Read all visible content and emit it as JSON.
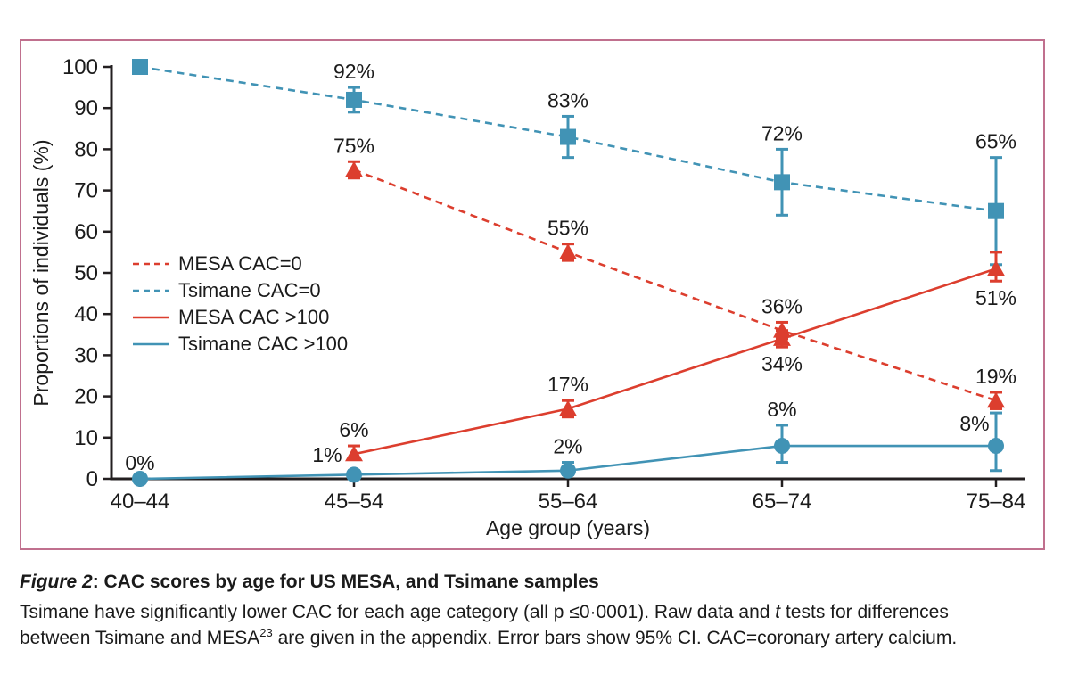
{
  "figure": {
    "border_color": "#c0708e",
    "background": "#ffffff"
  },
  "caption": {
    "figure_label": "Figure 2",
    "title": ": CAC scores by age for US MESA, and Tsimane samples",
    "body_line1_part1": "Tsimane have significantly lower CAC for each age category (all p ≤0·0001). Raw data and ",
    "body_line1_italic": "t",
    "body_line1_part2": " tests for differences",
    "body_line2_part1": "between Tsimane and MESA",
    "body_line2_sup": "23",
    "body_line2_part2": " are given in the appendix. Error bars show 95% CI. CAC=coronary artery calcium."
  },
  "chart_data": {
    "type": "line",
    "title": "CAC scores by age for US MESA, and Tsimane samples",
    "categories": [
      "40–44",
      "45–54",
      "55–64",
      "65–74",
      "75–84"
    ],
    "xlabel": "Age group (years)",
    "ylabel": "Proportions of individuals (%)",
    "ylim": [
      0,
      100
    ],
    "y_ticks": [
      0,
      10,
      20,
      30,
      40,
      50,
      60,
      70,
      80,
      90,
      100
    ],
    "grid": false,
    "legend_position": "middle-left",
    "error_bars": "95% CI (estimated from figure)",
    "colors": {
      "mesa_red": "#dc3e2e",
      "tsimane_blue": "#4193b5",
      "axis": "#231f20",
      "text": "#1b1b1b"
    },
    "series": [
      {
        "name": "MESA CAC=0",
        "color": "#dc3e2e",
        "line": "dashed",
        "marker": "triangle",
        "values": [
          null,
          75,
          55,
          36,
          19
        ],
        "ci": [
          null,
          [
            73,
            77
          ],
          [
            53,
            57
          ],
          [
            34,
            38
          ],
          [
            17,
            21
          ]
        ],
        "point_labels": [
          null,
          "75%",
          "55%",
          "36%",
          "19%"
        ],
        "label_pos": [
          null,
          "above",
          "above",
          "above",
          "above"
        ]
      },
      {
        "name": "Tsimane CAC=0",
        "color": "#4193b5",
        "line": "dashed",
        "marker": "square",
        "values": [
          100,
          92,
          83,
          72,
          65
        ],
        "ci": [
          null,
          [
            89,
            95
          ],
          [
            78,
            88
          ],
          [
            64,
            80
          ],
          [
            52,
            78
          ]
        ],
        "point_labels": [
          "",
          "92%",
          "83%",
          "72%",
          "65%"
        ],
        "label_pos": [
          null,
          "above",
          "above",
          "above",
          "above"
        ]
      },
      {
        "name": "MESA CAC >100",
        "color": "#dc3e2e",
        "line": "solid",
        "marker": "triangle",
        "values": [
          null,
          6,
          17,
          34,
          51
        ],
        "ci": [
          null,
          [
            5,
            8
          ],
          [
            15,
            19
          ],
          [
            32,
            36
          ],
          [
            48,
            55
          ]
        ],
        "point_labels": [
          null,
          "6%",
          "17%",
          "34%",
          "51%"
        ],
        "label_pos": [
          null,
          "above",
          "above",
          "below",
          "below"
        ]
      },
      {
        "name": "Tsimane CAC >100",
        "color": "#4193b5",
        "line": "solid",
        "marker": "circle",
        "values": [
          0,
          1,
          2,
          8,
          8
        ],
        "ci": [
          null,
          [
            0,
            2
          ],
          [
            1,
            4
          ],
          [
            4,
            13
          ],
          [
            2,
            16
          ]
        ],
        "point_labels": [
          "0%",
          "1%",
          "2%",
          "8%",
          "8%"
        ],
        "label_pos": [
          "above",
          "above-left",
          "above",
          "above",
          "left"
        ]
      }
    ]
  }
}
